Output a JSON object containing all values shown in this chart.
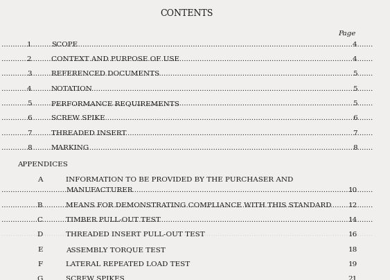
{
  "title": "CONTENTS",
  "page_label": "Page",
  "background_color": "#f0efed",
  "text_color": "#1a1a1a",
  "main_entries": [
    {
      "num": "1",
      "title": "SCOPE",
      "page": "4"
    },
    {
      "num": "2",
      "title": "CONTEXT AND PURPOSE OF USE",
      "page": "4"
    },
    {
      "num": "3",
      "title": "REFERENCED DOCUMENTS",
      "page": "5"
    },
    {
      "num": "4",
      "title": "NOTATION",
      "page": "5"
    },
    {
      "num": "5",
      "title": "PERFORMANCE REQUIREMENTS",
      "page": "5"
    },
    {
      "num": "6",
      "title": "SCREW SPIKE",
      "page": "6"
    },
    {
      "num": "7",
      "title": "THREADED INSERT",
      "page": "7"
    },
    {
      "num": "8",
      "title": "MARKING",
      "page": "8"
    }
  ],
  "appendices_label": "APPENDICES",
  "appendix_entries": [
    {
      "num": "A",
      "title_line1": "INFORMATION TO BE PROVIDED BY THE PURCHASER AND",
      "title_line2": "MANUFACTURER",
      "page": "10",
      "multiline": true
    },
    {
      "num": "B",
      "title_line1": "MEANS FOR DEMONSTRATING COMPLIANCE WITH THIS STANDARD",
      "title_line2": "",
      "page": "12",
      "multiline": false
    },
    {
      "num": "C",
      "title_line1": "TIMBER PULL-OUT TEST",
      "title_line2": "",
      "page": "14",
      "multiline": false
    },
    {
      "num": "D",
      "title_line1": "THREADED INSERT PULL-OUT TEST",
      "title_line2": "",
      "page": "16",
      "multiline": false
    },
    {
      "num": "E",
      "title_line1": "ASSEMBLY TORQUE TEST",
      "title_line2": "",
      "page": "18",
      "multiline": false
    },
    {
      "num": "F",
      "title_line1": "LATERAL REPEATED LOAD TEST",
      "title_line2": "",
      "page": "19",
      "multiline": false
    },
    {
      "num": "G",
      "title_line1": "SCREW SPIKES",
      "title_line2": "",
      "page": "21",
      "multiline": false
    }
  ]
}
